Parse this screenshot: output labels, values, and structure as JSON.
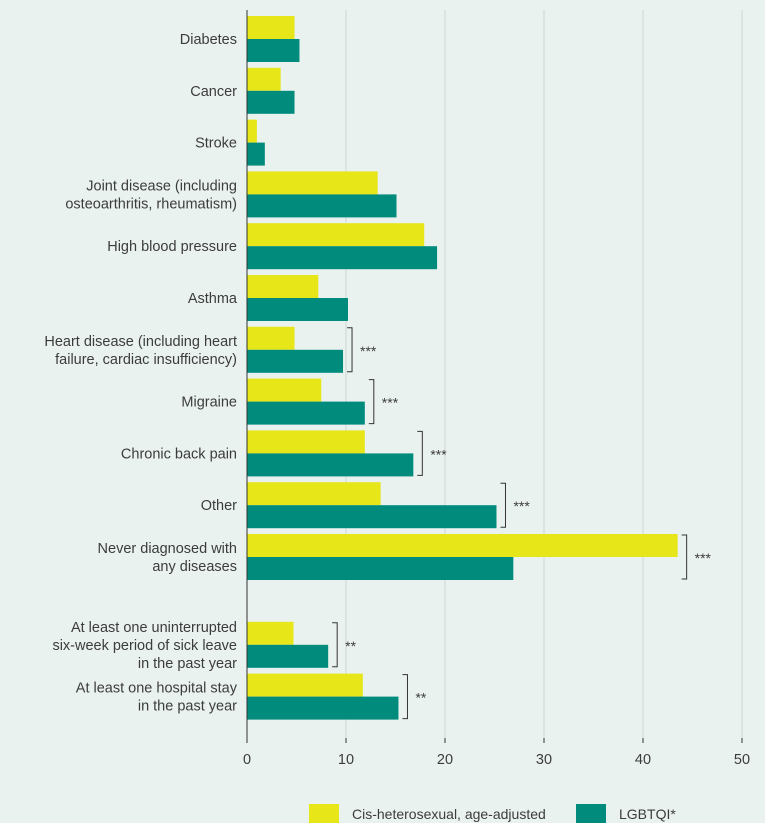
{
  "chart_data": {
    "type": "bar",
    "orientation": "horizontal",
    "xlim": [
      0,
      50
    ],
    "xticks": [
      0,
      10,
      20,
      30,
      40,
      50
    ],
    "grid": true,
    "legend_position": "bottom-right",
    "series": [
      {
        "name": "Cis-heterosexual, age-adjusted",
        "color": "#e6e619"
      },
      {
        "name": "LGBTQI*",
        "color": "#008b7c"
      }
    ],
    "groups": [
      {
        "categories": [
          {
            "label": [
              "Diabetes"
            ],
            "values": [
              4.8,
              5.3
            ],
            "sig": ""
          },
          {
            "label": [
              "Cancer"
            ],
            "values": [
              3.4,
              4.8
            ],
            "sig": ""
          },
          {
            "label": [
              "Stroke"
            ],
            "values": [
              1.0,
              1.8
            ],
            "sig": ""
          },
          {
            "label": [
              "Joint disease (including",
              "osteoarthritis, rheumatism)"
            ],
            "values": [
              13.2,
              15.1
            ],
            "sig": ""
          },
          {
            "label": [
              "High blood pressure"
            ],
            "values": [
              17.9,
              19.2
            ],
            "sig": ""
          },
          {
            "label": [
              "Asthma"
            ],
            "values": [
              7.2,
              10.2
            ],
            "sig": ""
          },
          {
            "label": [
              "Heart disease (including heart",
              "failure, cardiac insufficiency)"
            ],
            "values": [
              4.8,
              9.7
            ],
            "sig": "***"
          },
          {
            "label": [
              "Migraine"
            ],
            "values": [
              7.5,
              11.9
            ],
            "sig": "***"
          },
          {
            "label": [
              "Chronic back pain"
            ],
            "values": [
              11.9,
              16.8
            ],
            "sig": "***"
          },
          {
            "label": [
              "Other"
            ],
            "values": [
              13.5,
              25.2
            ],
            "sig": "***"
          },
          {
            "label": [
              "Never diagnosed with",
              "any diseases"
            ],
            "values": [
              43.5,
              26.9
            ],
            "sig": "***"
          }
        ]
      },
      {
        "categories": [
          {
            "label": [
              "At least one uninterrupted",
              "six-week period of sick leave",
              "in the past year"
            ],
            "values": [
              4.7,
              8.2
            ],
            "sig": "**"
          },
          {
            "label": [
              "At least one hospital stay",
              "in the past year"
            ],
            "values": [
              11.7,
              15.3
            ],
            "sig": "**"
          }
        ]
      }
    ]
  }
}
